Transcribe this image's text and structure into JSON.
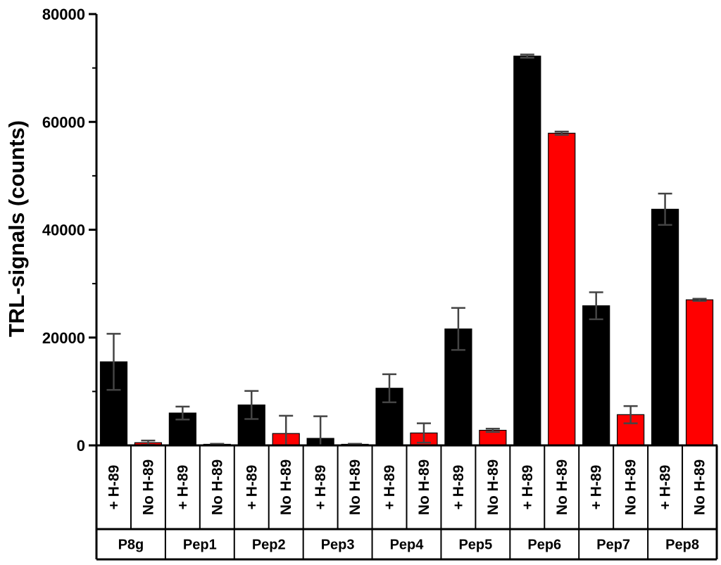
{
  "chart_data": {
    "type": "bar",
    "title": "",
    "ylabel": "TRL-signals (counts)",
    "xlabel": "",
    "ylim": [
      0,
      80000
    ],
    "yticks": [
      0,
      20000,
      40000,
      60000,
      80000
    ],
    "ytick_labels": [
      "0",
      "20000",
      "40000",
      "60000",
      "80000"
    ],
    "y_minor_step": 10000,
    "conditions": [
      "+ H-89",
      "No H-89"
    ],
    "groups": [
      "P8g",
      "Pep1",
      "Pep2",
      "Pep3",
      "Pep4",
      "Pep5",
      "Pep6",
      "Pep7",
      "Pep8"
    ],
    "series": [
      {
        "condition": "+ H-89",
        "color": "#000000",
        "values": [
          15500,
          6000,
          7500,
          1300,
          10600,
          21600,
          72200,
          25900,
          43800
        ],
        "errors": [
          5200,
          1200,
          2600,
          4100,
          2600,
          3900,
          300,
          2500,
          2900
        ]
      },
      {
        "condition": "No H-89",
        "color": "#ff0000",
        "values": [
          500,
          200,
          2200,
          200,
          2300,
          2800,
          57900,
          5700,
          27000
        ],
        "errors": [
          400,
          100,
          3300,
          100,
          1800,
          300,
          300,
          1600,
          200
        ]
      }
    ],
    "grid": false,
    "legend": "none"
  }
}
